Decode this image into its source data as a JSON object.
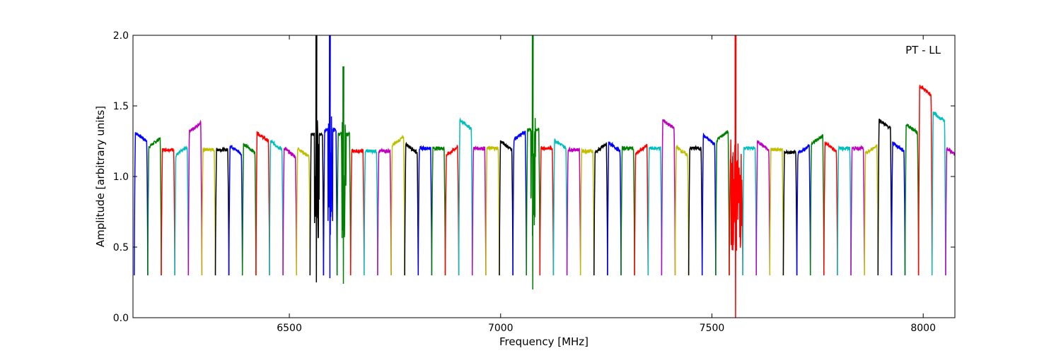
{
  "chart_data": {
    "type": "line",
    "title": "",
    "annotation": "PT - LL",
    "xlabel": "Frequency [MHz]",
    "ylabel": "Amplitude [arbitrary units]",
    "xlim": [
      6130,
      8075
    ],
    "ylim": [
      0.0,
      2.0
    ],
    "xticks": [
      6500,
      7000,
      7500,
      8000
    ],
    "yticks": [
      0.0,
      0.5,
      1.0,
      1.5,
      2.0
    ],
    "xtick_labels": [
      "6500",
      "7000",
      "7500",
      "8000"
    ],
    "ytick_labels": [
      "0.0",
      "0.5",
      "1.0",
      "1.5",
      "2.0"
    ],
    "grid": false,
    "legend": "none",
    "channel_width_mhz": 32,
    "color_cycle": [
      "#0000ff",
      "#008000",
      "#ff0000",
      "#00bfbf",
      "#bf00bf",
      "#bfbf00",
      "#000000"
    ],
    "series": [
      {
        "center": 6149,
        "peak": 1.31,
        "shape": "peak_left"
      },
      {
        "center": 6181,
        "peak": 1.27,
        "shape": "peak_right"
      },
      {
        "center": 6213,
        "peak": 1.19,
        "shape": "flat"
      },
      {
        "center": 6245,
        "peak": 1.21,
        "shape": "peak_right"
      },
      {
        "center": 6277,
        "peak": 1.38,
        "shape": "peak_right"
      },
      {
        "center": 6309,
        "peak": 1.19,
        "shape": "flat"
      },
      {
        "center": 6341,
        "peak": 1.19,
        "shape": "flat"
      },
      {
        "center": 6373,
        "peak": 1.22,
        "shape": "peak_left"
      },
      {
        "center": 6405,
        "peak": 1.23,
        "shape": "peak_left"
      },
      {
        "center": 6437,
        "peak": 1.31,
        "shape": "peak_left"
      },
      {
        "center": 6469,
        "peak": 1.25,
        "shape": "peak_left"
      },
      {
        "center": 6501,
        "peak": 1.2,
        "shape": "peak_left"
      },
      {
        "center": 6533,
        "peak": 1.2,
        "shape": "peak_left"
      },
      {
        "center": 6565,
        "peak": 1.3,
        "shape": "rfi",
        "spikes": [
          2.0,
          0.25
        ]
      },
      {
        "center": 6597,
        "peak": 1.33,
        "shape": "rfi",
        "spikes": [
          2.0,
          0.28
        ]
      },
      {
        "center": 6629,
        "peak": 1.3,
        "shape": "rfi",
        "spikes": [
          1.78,
          0.24
        ]
      },
      {
        "center": 6661,
        "peak": 1.18,
        "shape": "flat"
      },
      {
        "center": 6693,
        "peak": 1.18,
        "shape": "flat"
      },
      {
        "center": 6725,
        "peak": 1.18,
        "shape": "flat"
      },
      {
        "center": 6757,
        "peak": 1.28,
        "shape": "peak_right"
      },
      {
        "center": 6789,
        "peak": 1.23,
        "shape": "peak_left"
      },
      {
        "center": 6821,
        "peak": 1.2,
        "shape": "flat"
      },
      {
        "center": 6853,
        "peak": 1.2,
        "shape": "flat"
      },
      {
        "center": 6885,
        "peak": 1.21,
        "shape": "peak_right"
      },
      {
        "center": 6917,
        "peak": 1.4,
        "shape": "peak_left"
      },
      {
        "center": 6949,
        "peak": 1.2,
        "shape": "flat"
      },
      {
        "center": 6981,
        "peak": 1.2,
        "shape": "flat"
      },
      {
        "center": 7013,
        "peak": 1.25,
        "shape": "peak_left"
      },
      {
        "center": 7045,
        "peak": 1.32,
        "shape": "peak_right"
      },
      {
        "center": 7077,
        "peak": 1.33,
        "shape": "rfi",
        "spikes": [
          2.0,
          0.2
        ]
      },
      {
        "center": 7109,
        "peak": 1.2,
        "shape": "flat"
      },
      {
        "center": 7141,
        "peak": 1.26,
        "shape": "peak_left"
      },
      {
        "center": 7173,
        "peak": 1.19,
        "shape": "flat"
      },
      {
        "center": 7205,
        "peak": 1.18,
        "shape": "flat"
      },
      {
        "center": 7237,
        "peak": 1.23,
        "shape": "peak_right"
      },
      {
        "center": 7269,
        "peak": 1.24,
        "shape": "peak_left"
      },
      {
        "center": 7301,
        "peak": 1.2,
        "shape": "flat"
      },
      {
        "center": 7333,
        "peak": 1.22,
        "shape": "peak_right"
      },
      {
        "center": 7365,
        "peak": 1.2,
        "shape": "flat"
      },
      {
        "center": 7397,
        "peak": 1.4,
        "shape": "peak_left"
      },
      {
        "center": 7429,
        "peak": 1.21,
        "shape": "peak_left"
      },
      {
        "center": 7461,
        "peak": 1.2,
        "shape": "flat"
      },
      {
        "center": 7493,
        "peak": 1.29,
        "shape": "peak_left"
      },
      {
        "center": 7525,
        "peak": 1.32,
        "shape": "peak_right"
      },
      {
        "center": 7557,
        "peak": 1.07,
        "shape": "rfi_noise",
        "spikes": [
          2.0,
          0.0
        ]
      },
      {
        "center": 7589,
        "peak": 1.2,
        "shape": "flat"
      },
      {
        "center": 7621,
        "peak": 1.25,
        "shape": "peak_left"
      },
      {
        "center": 7653,
        "peak": 1.19,
        "shape": "flat"
      },
      {
        "center": 7685,
        "peak": 1.17,
        "shape": "flat"
      },
      {
        "center": 7717,
        "peak": 1.22,
        "shape": "peak_right"
      },
      {
        "center": 7749,
        "peak": 1.29,
        "shape": "peak_right"
      },
      {
        "center": 7781,
        "peak": 1.24,
        "shape": "peak_left"
      },
      {
        "center": 7813,
        "peak": 1.2,
        "shape": "flat"
      },
      {
        "center": 7845,
        "peak": 1.2,
        "shape": "flat"
      },
      {
        "center": 7877,
        "peak": 1.22,
        "shape": "peak_right"
      },
      {
        "center": 7909,
        "peak": 1.4,
        "shape": "peak_left"
      },
      {
        "center": 7941,
        "peak": 1.24,
        "shape": "peak_left"
      },
      {
        "center": 7973,
        "peak": 1.37,
        "shape": "peak_left"
      },
      {
        "center": 8005,
        "peak": 1.64,
        "shape": "peak_left"
      },
      {
        "center": 8037,
        "peak": 1.45,
        "shape": "peak_left"
      },
      {
        "center": 8069,
        "peak": 1.2,
        "shape": "peak_left"
      }
    ]
  }
}
